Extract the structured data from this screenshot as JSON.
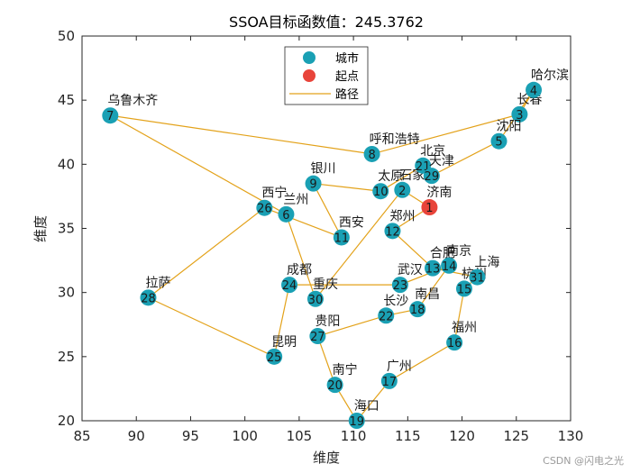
{
  "chart_data": {
    "type": "scatter",
    "title": "SSOA目标函数值：245.3762",
    "xlabel": "维度",
    "ylabel": "维度",
    "xlim": [
      85,
      130
    ],
    "ylim": [
      20,
      50
    ],
    "xticks": [
      85,
      90,
      95,
      100,
      105,
      110,
      115,
      120,
      125,
      130
    ],
    "yticks": [
      20,
      25,
      30,
      35,
      40,
      45,
      50
    ],
    "grid": false,
    "legend_position": "top-center",
    "legend": [
      "城市",
      "起点",
      "路径"
    ],
    "colors": {
      "city": "#1aa0b4",
      "start": "#e8443a",
      "path": "#e3a21a"
    },
    "cities": [
      {
        "id": 1,
        "name": "济南",
        "x": 117.0,
        "y": 36.65
      },
      {
        "id": 2,
        "name": "石家庄",
        "x": 114.5,
        "y": 38.0
      },
      {
        "id": 3,
        "name": "长春",
        "x": 125.3,
        "y": 43.9
      },
      {
        "id": 4,
        "name": "哈尔滨",
        "x": 126.6,
        "y": 45.8
      },
      {
        "id": 5,
        "name": "沈阳",
        "x": 123.4,
        "y": 41.8
      },
      {
        "id": 6,
        "name": "兰州",
        "x": 103.8,
        "y": 36.1
      },
      {
        "id": 7,
        "name": "乌鲁木齐",
        "x": 87.6,
        "y": 43.8
      },
      {
        "id": 8,
        "name": "呼和浩特",
        "x": 111.7,
        "y": 40.8
      },
      {
        "id": 9,
        "name": "银川",
        "x": 106.3,
        "y": 38.5
      },
      {
        "id": 10,
        "name": "太原",
        "x": 112.5,
        "y": 37.9
      },
      {
        "id": 11,
        "name": "西安",
        "x": 108.9,
        "y": 34.3
      },
      {
        "id": 12,
        "name": "郑州",
        "x": 113.6,
        "y": 34.8
      },
      {
        "id": 13,
        "name": "合肥",
        "x": 117.3,
        "y": 31.9
      },
      {
        "id": 14,
        "name": "南京",
        "x": 118.8,
        "y": 32.1
      },
      {
        "id": 15,
        "name": "杭州",
        "x": 120.2,
        "y": 30.3
      },
      {
        "id": 16,
        "name": "福州",
        "x": 119.3,
        "y": 26.1
      },
      {
        "id": 17,
        "name": "广州",
        "x": 113.3,
        "y": 23.1
      },
      {
        "id": 18,
        "name": "南昌",
        "x": 115.9,
        "y": 28.7
      },
      {
        "id": 19,
        "name": "海口",
        "x": 110.3,
        "y": 20.0
      },
      {
        "id": 20,
        "name": "南宁",
        "x": 108.3,
        "y": 22.8
      },
      {
        "id": 21,
        "name": "北京",
        "x": 116.4,
        "y": 39.9
      },
      {
        "id": 22,
        "name": "长沙",
        "x": 113.0,
        "y": 28.2
      },
      {
        "id": 23,
        "name": "武汉",
        "x": 114.3,
        "y": 30.6
      },
      {
        "id": 24,
        "name": "成都",
        "x": 104.1,
        "y": 30.6
      },
      {
        "id": 25,
        "name": "昆明",
        "x": 102.7,
        "y": 25.0
      },
      {
        "id": 26,
        "name": "西宁",
        "x": 101.8,
        "y": 36.6
      },
      {
        "id": 27,
        "name": "贵阳",
        "x": 106.7,
        "y": 26.6
      },
      {
        "id": 28,
        "name": "拉萨",
        "x": 91.1,
        "y": 29.6
      },
      {
        "id": 29,
        "name": "天津",
        "x": 117.2,
        "y": 39.1
      },
      {
        "id": 30,
        "name": "重庆",
        "x": 106.5,
        "y": 29.5
      },
      {
        "id": 31,
        "name": "上海",
        "x": 121.4,
        "y": 31.2
      }
    ],
    "start_city": 1,
    "route": [
      1,
      12,
      13,
      31,
      15,
      16,
      17,
      19,
      20,
      27,
      22,
      18,
      14,
      23,
      24,
      25,
      28,
      26,
      11,
      9,
      10,
      21,
      29,
      5,
      4,
      3,
      8,
      7,
      6,
      30,
      2,
      1
    ]
  },
  "watermark": "CSDN @闪电之光"
}
